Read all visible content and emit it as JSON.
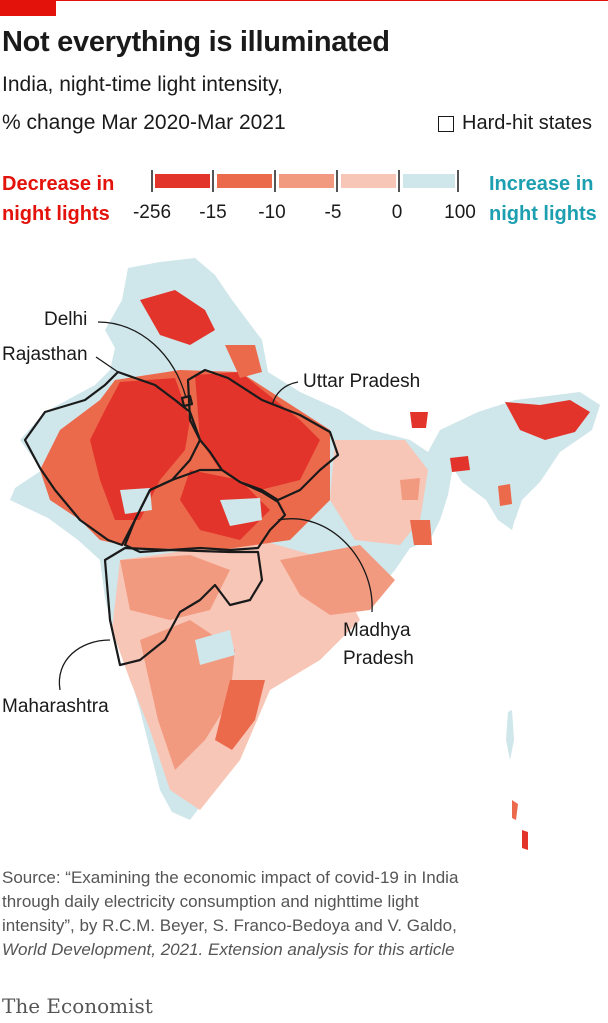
{
  "title": "Not everything is illuminated",
  "subtitle_line1": "India, night-time light intensity,",
  "subtitle_line2": "% change Mar 2020-Mar 2021",
  "legend": {
    "hard_hit": "Hard-hit states",
    "decrease_line1": "Decrease in",
    "decrease_line2": "night lights",
    "increase_line1": "Increase in",
    "increase_line2": "night lights",
    "ticks": [
      "-256",
      "-15",
      "-10",
      "-5",
      "0",
      "100"
    ],
    "bins": [
      {
        "from": -256,
        "to": -15,
        "color": "#e3342b"
      },
      {
        "from": -15,
        "to": -10,
        "color": "#ec6a4c"
      },
      {
        "from": -10,
        "to": -5,
        "color": "#f29a80"
      },
      {
        "from": -5,
        "to": 0,
        "color": "#f8c6b6"
      },
      {
        "from": 0,
        "to": 100,
        "color": "#cfe6ea"
      }
    ]
  },
  "labels": {
    "delhi": "Delhi",
    "rajasthan": "Rajasthan",
    "uttar_pradesh": "Uttar Pradesh",
    "madhya_1": "Madhya",
    "madhya_2": "Pradesh",
    "maharashtra": "Maharashtra"
  },
  "colors": {
    "increase_text": "#1c9fb0",
    "decrease_text": "#e3120b",
    "brand_red": "#e3120b"
  },
  "source_lines": [
    "Source: “Examining the economic impact of covid-19 in India",
    "through daily electricity consumption and nighttime light",
    "intensity”, by R.C.M. Beyer, S. Franco-Bedoya and V. Galdo,",
    "World Development, 2021. Extension analysis for this article"
  ],
  "brand": "The Economist"
}
